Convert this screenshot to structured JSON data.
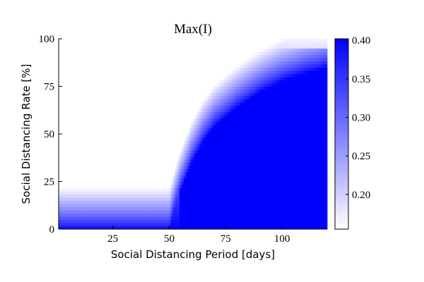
{
  "chart_data": {
    "type": "heatmap",
    "title": "Max(I)",
    "xlabel": "Social Distancing Period [days]",
    "ylabel": "Social Distancing Rate [%]",
    "xlim": [
      1,
      120
    ],
    "ylim": [
      0,
      100
    ],
    "x_ticks": [
      25,
      50,
      75,
      100
    ],
    "y_ticks": [
      0,
      25,
      50,
      75,
      100
    ],
    "colorbar": {
      "min": 0.155,
      "max": 0.402,
      "ticks": [
        0.2,
        0.25,
        0.3,
        0.35,
        0.4
      ],
      "tick_labels": [
        "0.20",
        "0.25",
        "0.30",
        "0.35",
        "0.40"
      ],
      "low_color": "#ffffff",
      "high_color": "#0000ff"
    },
    "pattern": {
      "description_of_values": "Max(I) is ~0.40 at low rates for all periods and at all rates for periods beyond the frontier; values drop toward ~0.16 at high rates and short periods, with a diagonal band structure.",
      "frontier_rate_at_period": [
        [
          1,
          0
        ],
        [
          50,
          0
        ],
        [
          55,
          20
        ],
        [
          60,
          35
        ],
        [
          65,
          46
        ],
        [
          70,
          54
        ],
        [
          80,
          64
        ],
        [
          90,
          72
        ],
        [
          100,
          78
        ],
        [
          110,
          82
        ],
        [
          120,
          85
        ]
      ],
      "band_edges": [
        {
          "period_at_rate_0": 7,
          "slope": 5.0,
          "width": 1.2
        },
        {
          "period_at_rate_0": 14,
          "slope": 4.5,
          "width": 1.6
        },
        {
          "period_at_rate_0": 22,
          "slope": 4.0,
          "width": 2.0
        },
        {
          "period_at_rate_0": 32,
          "slope": 3.4,
          "width": 2.4
        }
      ]
    }
  }
}
